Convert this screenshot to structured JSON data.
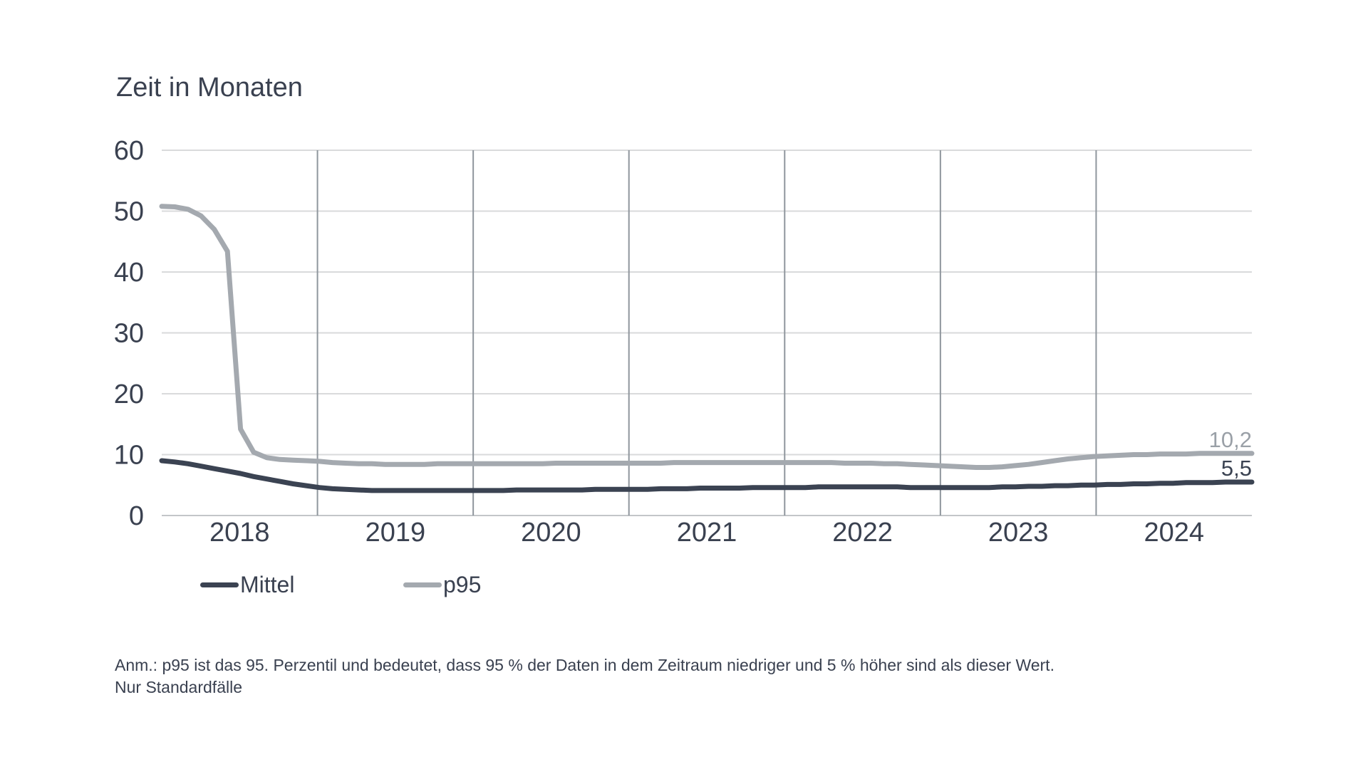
{
  "title": "Zeit in Monaten",
  "legend": [
    {
      "label": "Mittel",
      "color": "#3b4352"
    },
    {
      "label": "p95",
      "color": "#a4a9af"
    }
  ],
  "footnote": {
    "line1": "Anm.: p95 ist das 95. Perzentil und bedeutet, dass 95 % der Daten in dem Zeitraum niedriger und 5 % höher sind als dieser Wert.",
    "line2": "Nur Standardfälle"
  },
  "colors": {
    "text": "#3a4150",
    "grid_horizontal": "#d9dadb",
    "grid_vertical": "#8f969d",
    "axis_zero_line": "#c3c6c9",
    "mittel_line": "#3b4352",
    "p95_line": "#a4a9af",
    "p95_end_label": "#9aa0a7"
  },
  "chart_data": {
    "type": "line",
    "title": "Zeit in Monaten",
    "xlabel": "",
    "ylabel": "Zeit in Monaten",
    "x_unit": "month",
    "x_start": "2018-01",
    "x_end": "2024-12",
    "xtick_labels": [
      "2018",
      "2019",
      "2020",
      "2021",
      "2022",
      "2023",
      "2024"
    ],
    "ylim": [
      0,
      60
    ],
    "yticks": [
      0,
      10,
      20,
      30,
      40,
      50,
      60
    ],
    "grid": true,
    "legend_position": "bottom-left",
    "series": [
      {
        "name": "Mittel",
        "color": "#3b4352",
        "end_label": "5,5",
        "end_label_color": "#3b4352",
        "last_value": 5.5,
        "values": [
          9.0,
          8.8,
          8.5,
          8.1,
          7.7,
          7.3,
          6.9,
          6.4,
          6.0,
          5.6,
          5.2,
          4.9,
          4.6,
          4.4,
          4.3,
          4.2,
          4.1,
          4.1,
          4.1,
          4.1,
          4.1,
          4.1,
          4.1,
          4.1,
          4.1,
          4.1,
          4.1,
          4.2,
          4.2,
          4.2,
          4.2,
          4.2,
          4.2,
          4.3,
          4.3,
          4.3,
          4.3,
          4.3,
          4.4,
          4.4,
          4.4,
          4.5,
          4.5,
          4.5,
          4.5,
          4.6,
          4.6,
          4.6,
          4.6,
          4.6,
          4.7,
          4.7,
          4.7,
          4.7,
          4.7,
          4.7,
          4.7,
          4.6,
          4.6,
          4.6,
          4.6,
          4.6,
          4.6,
          4.6,
          4.7,
          4.7,
          4.8,
          4.8,
          4.9,
          4.9,
          5.0,
          5.0,
          5.1,
          5.1,
          5.2,
          5.2,
          5.3,
          5.3,
          5.4,
          5.4,
          5.4,
          5.5,
          5.5,
          5.5
        ]
      },
      {
        "name": "p95",
        "color": "#a4a9af",
        "end_label": "10,2",
        "end_label_color": "#9aa0a7",
        "last_value": 10.2,
        "values": [
          50.8,
          50.7,
          50.3,
          49.2,
          47.0,
          43.4,
          14.2,
          10.4,
          9.5,
          9.2,
          9.1,
          9.0,
          8.9,
          8.7,
          8.6,
          8.5,
          8.5,
          8.4,
          8.4,
          8.4,
          8.4,
          8.5,
          8.5,
          8.5,
          8.5,
          8.5,
          8.5,
          8.5,
          8.5,
          8.5,
          8.6,
          8.6,
          8.6,
          8.6,
          8.6,
          8.6,
          8.6,
          8.6,
          8.6,
          8.7,
          8.7,
          8.7,
          8.7,
          8.7,
          8.7,
          8.7,
          8.7,
          8.7,
          8.7,
          8.7,
          8.7,
          8.7,
          8.6,
          8.6,
          8.6,
          8.5,
          8.5,
          8.4,
          8.3,
          8.2,
          8.1,
          8.0,
          7.9,
          7.9,
          8.0,
          8.2,
          8.4,
          8.7,
          9.0,
          9.3,
          9.5,
          9.7,
          9.8,
          9.9,
          10.0,
          10.0,
          10.1,
          10.1,
          10.1,
          10.2,
          10.2,
          10.2,
          10.2,
          10.2
        ]
      }
    ]
  }
}
